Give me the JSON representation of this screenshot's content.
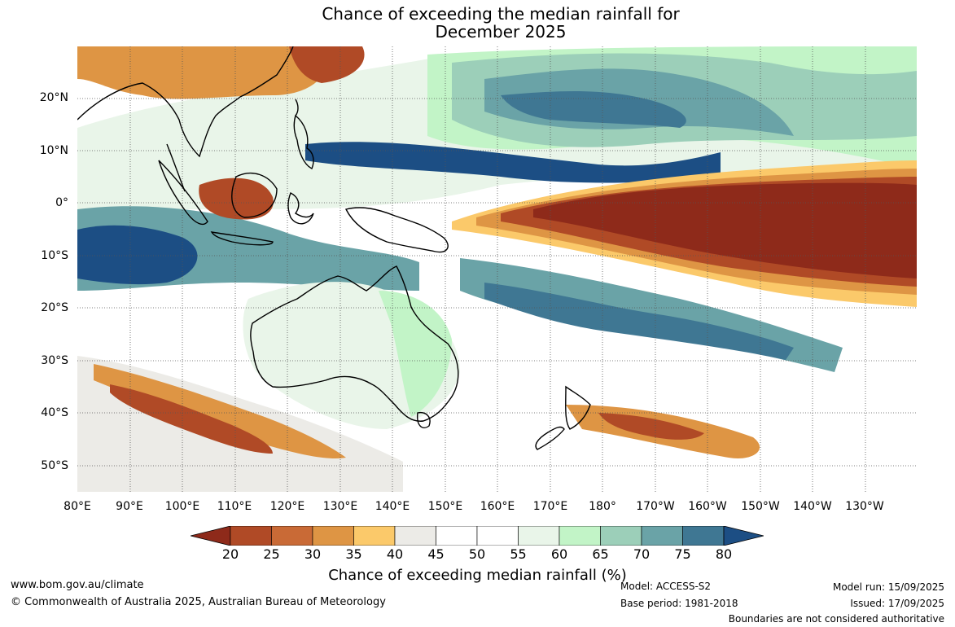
{
  "header": {
    "title_line1": "Chance of exceeding the median rainfall for",
    "title_line2": "December 2025"
  },
  "map": {
    "lat_labels": [
      "20°N",
      "10°N",
      "0°",
      "10°S",
      "20°S",
      "30°S",
      "40°S",
      "50°S"
    ],
    "lon_labels": [
      "80°E",
      "90°E",
      "100°E",
      "110°E",
      "120°E",
      "130°E",
      "140°E",
      "150°E",
      "160°E",
      "170°E",
      "180°",
      "170°W",
      "160°W",
      "150°W",
      "140°W",
      "130°W"
    ]
  },
  "legend": {
    "title": "Chance of exceeding median rainfall (%)",
    "ticks": [
      "20",
      "25",
      "30",
      "35",
      "40",
      "45",
      "50",
      "55",
      "60",
      "65",
      "70",
      "75",
      "80"
    ],
    "colors": [
      "#8e2a1a",
      "#b04a26",
      "#c96a36",
      "#de9544",
      "#fbc96a",
      "#ecebe7",
      "#ffffff",
      "#ffffff",
      "#e9f5e9",
      "#c2f4c7",
      "#9ccfb9",
      "#6aa3a7",
      "#3f7793",
      "#1c4e84"
    ]
  },
  "footer": {
    "url": "www.bom.gov.au/climate",
    "copyright": "© Commonwealth of Australia 2025, Australian Bureau of Meteorology",
    "model": "Model: ACCESS-S2",
    "base_period": "Base period: 1981-2018",
    "model_run": "Model run: 15/09/2025",
    "issued": "Issued: 17/09/2025",
    "disclaimer": "Boundaries are not considered authoritative"
  }
}
